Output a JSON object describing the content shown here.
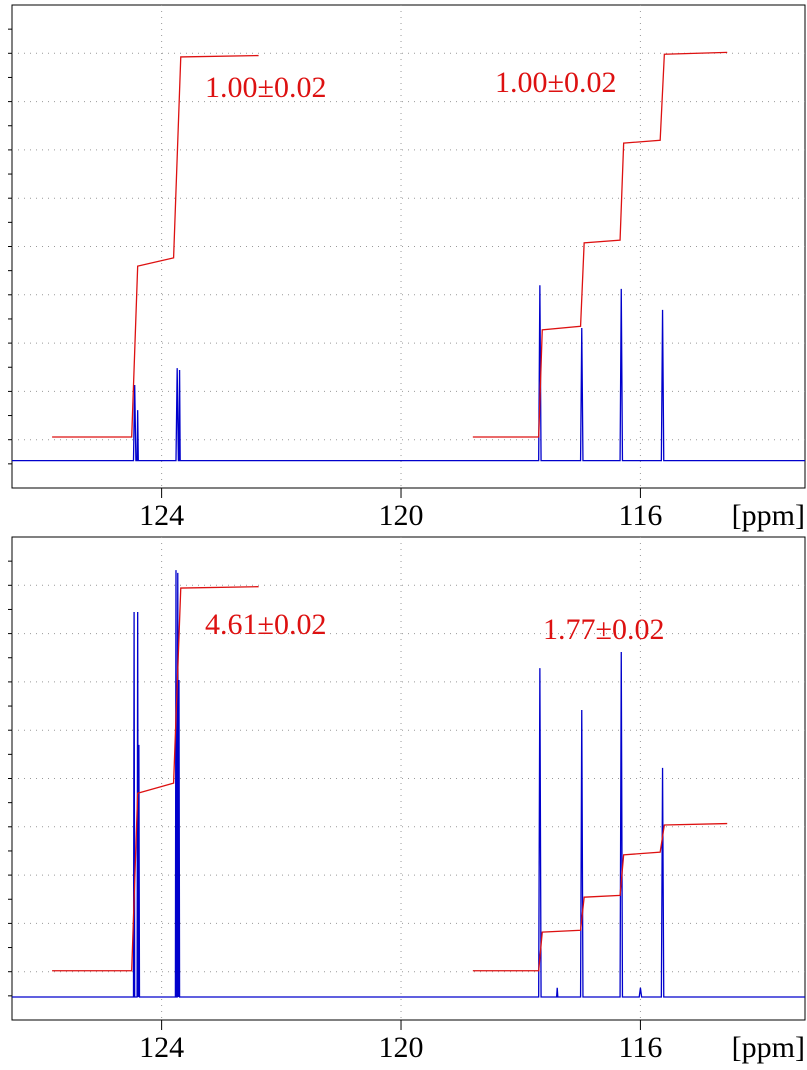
{
  "chart_data": [
    {
      "type": "line",
      "x_label": "[ppm]",
      "xlim": [
        126.5,
        113.25
      ],
      "ylim": [
        -6,
        100
      ],
      "xticks": [
        124,
        120,
        116
      ],
      "grid": true,
      "annotations": [
        "1.00±0.02",
        "1.00±0.02"
      ],
      "series": [
        {
          "color": "#0000cc",
          "x": [
            126.5,
            124.47,
            124.45,
            124.43,
            124.41,
            124.4,
            124.39,
            123.76,
            123.74,
            123.72,
            123.71,
            123.7,
            123.69,
            117.7,
            117.68,
            117.66,
            117.0,
            116.98,
            116.96,
            116.34,
            116.32,
            116.3,
            115.65,
            115.63,
            115.61,
            113.25
          ],
          "values": [
            0,
            0,
            16.6,
            0,
            0,
            11.1,
            0,
            0,
            20.3,
            0,
            0,
            19.9,
            0,
            0,
            38.5,
            0,
            0,
            29.1,
            0,
            0,
            37.7,
            0,
            0,
            33.1,
            0,
            0
          ]
        },
        {
          "color": "#dd1111",
          "x": [
            125.83,
            124.5,
            124.4,
            123.8,
            123.68,
            122.38,
            120.3,
            118.8,
            117.7,
            117.64,
            117.0,
            116.94,
            116.34,
            116.28,
            115.67,
            115.6,
            114.55
          ],
          "values": [
            5.2,
            5.2,
            42.7,
            44.5,
            88.6,
            88.9,
            null,
            5.2,
            5.2,
            28.7,
            29.5,
            47.8,
            48.4,
            69.7,
            70.3,
            89.2,
            89.6
          ]
        }
      ]
    },
    {
      "type": "line",
      "x_label": "[ppm]",
      "xlim": [
        126.5,
        113.25
      ],
      "ylim": [
        -5,
        100
      ],
      "xticks": [
        124,
        120,
        116
      ],
      "grid": true,
      "annotations": [
        "4.61±0.02",
        "1.77±0.02"
      ],
      "series": [
        {
          "color": "#0000cc",
          "x": [
            126.5,
            124.47,
            124.46,
            124.45,
            124.41,
            124.4,
            124.39,
            124.38,
            124.37,
            123.77,
            123.76,
            123.75,
            123.74,
            123.73,
            123.72,
            123.71,
            123.7,
            117.7,
            117.68,
            117.66,
            117.4,
            117.39,
            117.38,
            117.0,
            116.98,
            116.96,
            116.34,
            116.32,
            116.3,
            116.02,
            116.0,
            115.98,
            115.65,
            115.63,
            115.61,
            113.25
          ],
          "values": [
            0,
            0,
            83.7,
            0,
            0,
            83.7,
            0,
            54.8,
            0,
            0,
            92.8,
            0,
            0,
            92.2,
            0,
            68.9,
            0,
            0,
            71.5,
            0,
            0,
            2,
            0,
            0,
            62.4,
            0,
            0,
            75,
            0,
            0,
            2,
            0,
            0,
            49.8,
            0,
            0
          ]
        },
        {
          "color": "#dd1111",
          "x": [
            125.83,
            124.5,
            124.4,
            123.8,
            123.68,
            122.38,
            120.3,
            118.8,
            117.7,
            117.64,
            117.0,
            116.94,
            116.34,
            116.28,
            115.67,
            115.6,
            114.55
          ],
          "values": [
            5.7,
            5.7,
            44.3,
            46.5,
            88.9,
            89.2,
            null,
            5.7,
            5.7,
            14.1,
            14.5,
            21.7,
            22.1,
            30.9,
            31.5,
            37.4,
            37.7
          ]
        }
      ]
    }
  ]
}
